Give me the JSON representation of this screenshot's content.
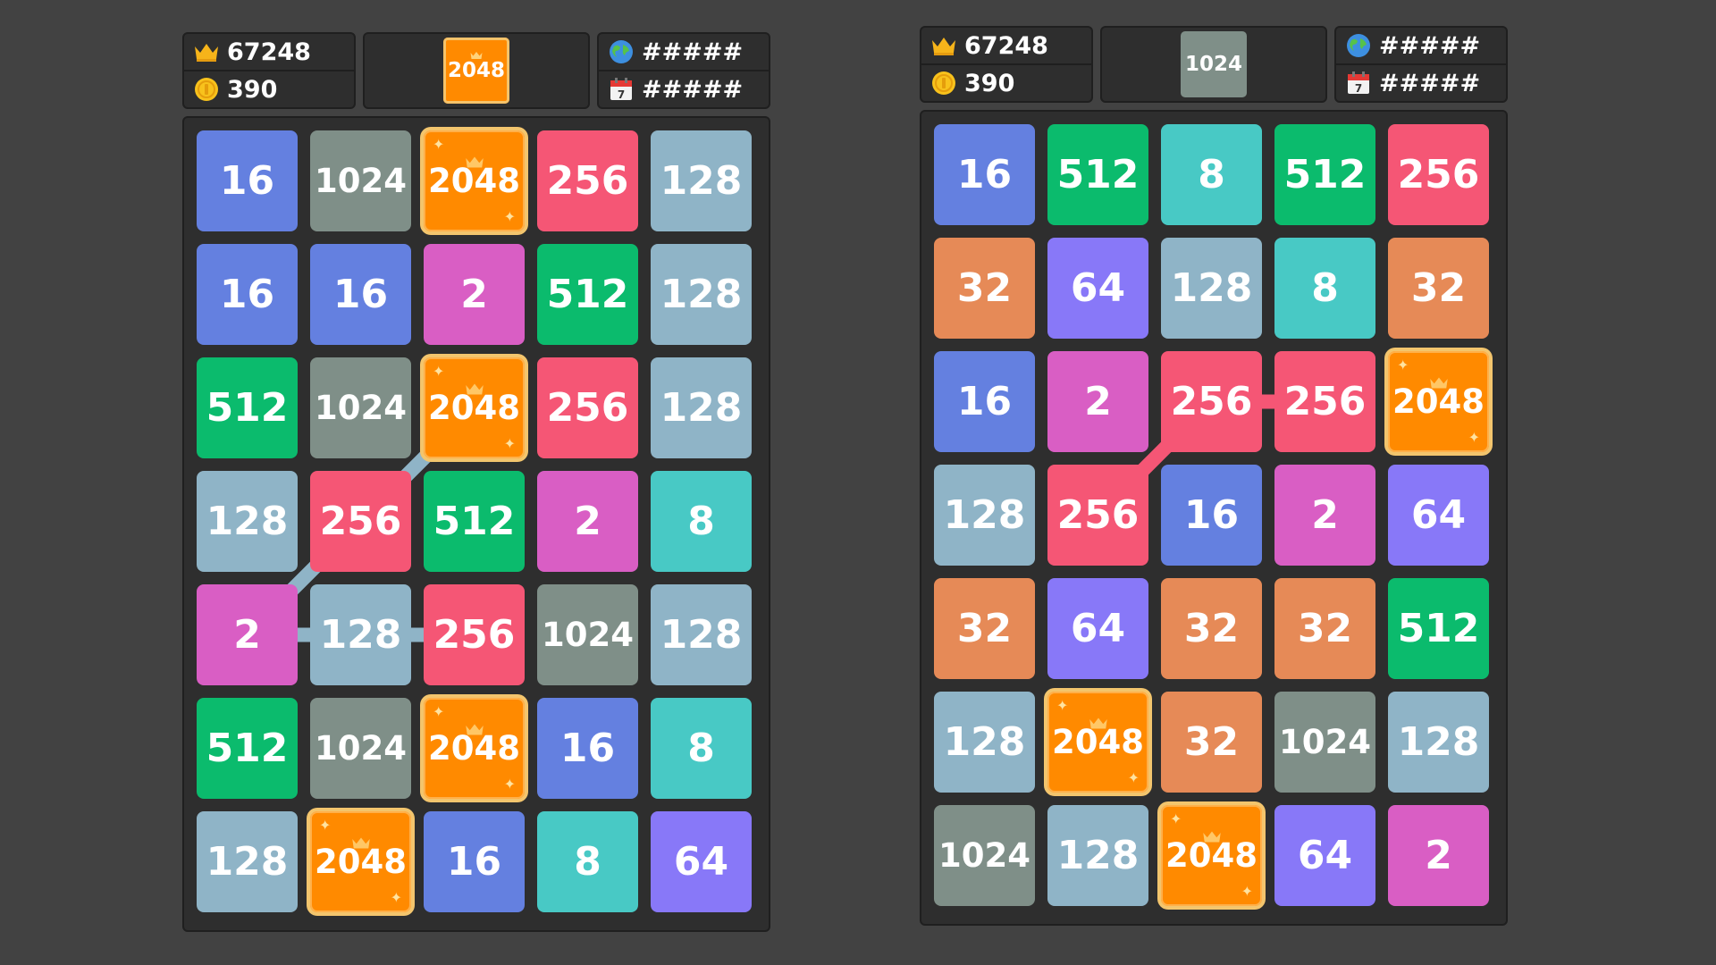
{
  "colors": {
    "2": "#d95ec4",
    "8": "#48c9c5",
    "16": "#6480e0",
    "32": "#e68a57",
    "64": "#8878f8",
    "128": "#8fb4c7",
    "256": "#f55675",
    "512": "#0bbb6d",
    "1024": "#7f8f88",
    "2048": "#ff8a00",
    "gold_border": "#f3c56d"
  },
  "icons": {
    "best_score": "crown-icon",
    "coins": "coin-icon",
    "world_rank": "globe-icon",
    "daily_rank": "calendar-icon",
    "tile_badge": "crown-icon"
  },
  "panels": [
    {
      "header": {
        "best_score": "67248",
        "coins": "390",
        "target": "2048",
        "target_style": "gold",
        "world_rank": "#####",
        "daily_rank": "#####"
      },
      "grid": [
        [
          "16",
          "1024",
          "2048",
          "256",
          "128"
        ],
        [
          "16",
          "16",
          "2",
          "512",
          "128"
        ],
        [
          "512",
          "1024",
          "2048",
          "256",
          "128"
        ],
        [
          "128",
          "256",
          "512",
          "2",
          "8"
        ],
        [
          "2",
          "128",
          "256",
          "1024",
          "128"
        ],
        [
          "512",
          "1024",
          "2048",
          "16",
          "8"
        ],
        [
          "128",
          "2048",
          "16",
          "8",
          "64"
        ]
      ],
      "chain": {
        "color": "#8fb4c7",
        "cells": [
          [
            2,
            2
          ],
          [
            3,
            1
          ],
          [
            4,
            0
          ],
          [
            4,
            1
          ],
          [
            4,
            2
          ]
        ]
      }
    },
    {
      "header": {
        "best_score": "67248",
        "coins": "390",
        "target": "1024",
        "target_style": "plain",
        "world_rank": "#####",
        "daily_rank": "#####"
      },
      "grid": [
        [
          "16",
          "512",
          "8",
          "512",
          "256"
        ],
        [
          "32",
          "64",
          "128",
          "8",
          "32"
        ],
        [
          "16",
          "2",
          "256",
          "256",
          "2048"
        ],
        [
          "128",
          "256",
          "16",
          "2",
          "64"
        ],
        [
          "32",
          "64",
          "32",
          "32",
          "512"
        ],
        [
          "128",
          "2048",
          "32",
          "1024",
          "128"
        ],
        [
          "1024",
          "128",
          "2048",
          "64",
          "2"
        ]
      ],
      "chain": {
        "color": "#f55675",
        "cells": [
          [
            3,
            1
          ],
          [
            2,
            2
          ],
          [
            2,
            3
          ]
        ]
      }
    }
  ]
}
